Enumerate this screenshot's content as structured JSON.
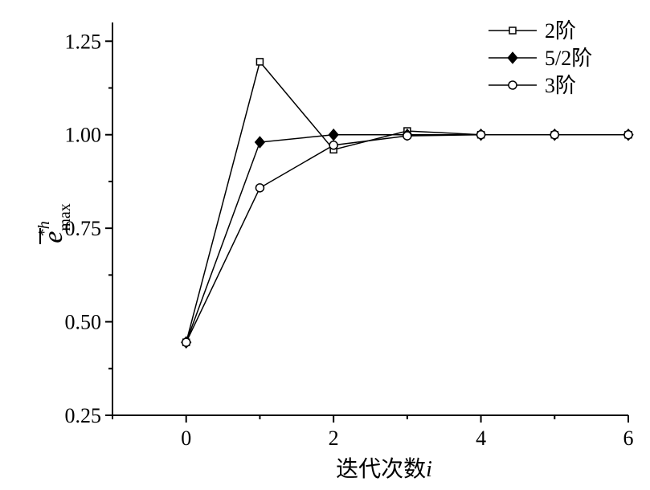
{
  "chart_data": {
    "type": "line",
    "xlabel": "迭代次数",
    "xlabel_var": "i",
    "ylabel": {
      "base": "e",
      "superscript": "*h",
      "subscript": "max"
    },
    "xlim": [
      -1,
      6
    ],
    "ylim": [
      0.25,
      1.3
    ],
    "x_ticks": [
      0,
      2,
      4,
      6
    ],
    "x_tick_labels": [
      "0",
      "2",
      "4",
      "6"
    ],
    "y_ticks": [
      0.25,
      0.5,
      0.75,
      1.0,
      1.25
    ],
    "y_tick_labels": [
      "0.25",
      "0.50",
      "0.75",
      "1.00",
      "1.25"
    ],
    "legend_position": "top-right",
    "grid": false,
    "x": [
      0,
      1,
      2,
      3,
      4,
      5,
      6
    ],
    "series": [
      {
        "name": "2阶",
        "marker": "open-square",
        "color": "#000000",
        "values": [
          0.445,
          1.195,
          0.96,
          1.01,
          1.0,
          1.0,
          1.0
        ]
      },
      {
        "name": "5/2阶",
        "marker": "filled-diamond",
        "color": "#000000",
        "values": [
          0.445,
          0.98,
          1.0,
          1.0,
          1.0,
          1.0,
          1.0
        ]
      },
      {
        "name": "3阶",
        "marker": "open-circle",
        "color": "#000000",
        "values": [
          0.445,
          0.858,
          0.972,
          0.997,
          1.0,
          1.0,
          1.0
        ]
      }
    ]
  }
}
